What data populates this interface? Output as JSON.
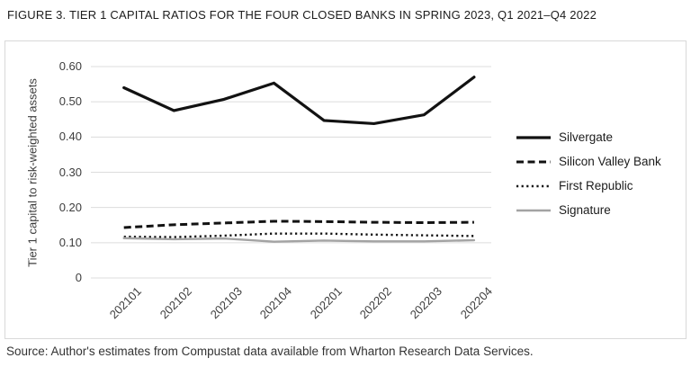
{
  "figure": {
    "title": "FIGURE 3. TIER 1 CAPITAL RATIOS FOR THE FOUR CLOSED BANKS IN SPRING 2023, Q1 2021–Q4 2022",
    "source": "Source: Author's estimates from Compustat data available from Wharton Research Data Services."
  },
  "chart_data": {
    "type": "line",
    "title": "FIGURE 3. TIER 1 CAPITAL RATIOS FOR THE FOUR CLOSED BANKS IN SPRING 2023, Q1 2021–Q4 2022",
    "xlabel": "",
    "ylabel": "Tier 1 capital to risk-weighted assets",
    "categories": [
      "202101",
      "202102",
      "202103",
      "202104",
      "202201",
      "202202",
      "202203",
      "202204"
    ],
    "series": [
      {
        "name": "Silvergate",
        "line_style": "solid",
        "color": "#121212",
        "stroke_width": 3.2,
        "values": [
          0.54,
          0.475,
          0.507,
          0.553,
          0.447,
          0.438,
          0.463,
          0.57
        ]
      },
      {
        "name": "Silicon Valley Bank",
        "line_style": "dashed",
        "color": "#121212",
        "stroke_width": 3.0,
        "values": [
          0.143,
          0.151,
          0.156,
          0.161,
          0.16,
          0.158,
          0.157,
          0.158
        ]
      },
      {
        "name": "First Republic",
        "line_style": "dotted",
        "color": "#121212",
        "stroke_width": 2.4,
        "values": [
          0.117,
          0.116,
          0.12,
          0.126,
          0.126,
          0.123,
          0.121,
          0.119
        ]
      },
      {
        "name": "Signature",
        "line_style": "solid",
        "color": "#a3a3a3",
        "stroke_width": 2.4,
        "values": [
          0.113,
          0.11,
          0.112,
          0.103,
          0.106,
          0.104,
          0.104,
          0.107
        ]
      }
    ],
    "ylim": [
      0,
      0.6
    ],
    "ytick_values": [
      0,
      0.1,
      0.2,
      0.3,
      0.4,
      0.5,
      0.6
    ],
    "ytick_labels": [
      "0",
      "0.10",
      "0.20",
      "0.30",
      "0.40",
      "0.50",
      "0.60"
    ],
    "grid": true,
    "legend_position": "right",
    "colors": {
      "grid_line": "#dcdcdc",
      "axis_text": "#3d3d3d",
      "frame_border": "#d9d9d9",
      "title_text": "#1c1c1c",
      "source_text": "#333333"
    }
  }
}
